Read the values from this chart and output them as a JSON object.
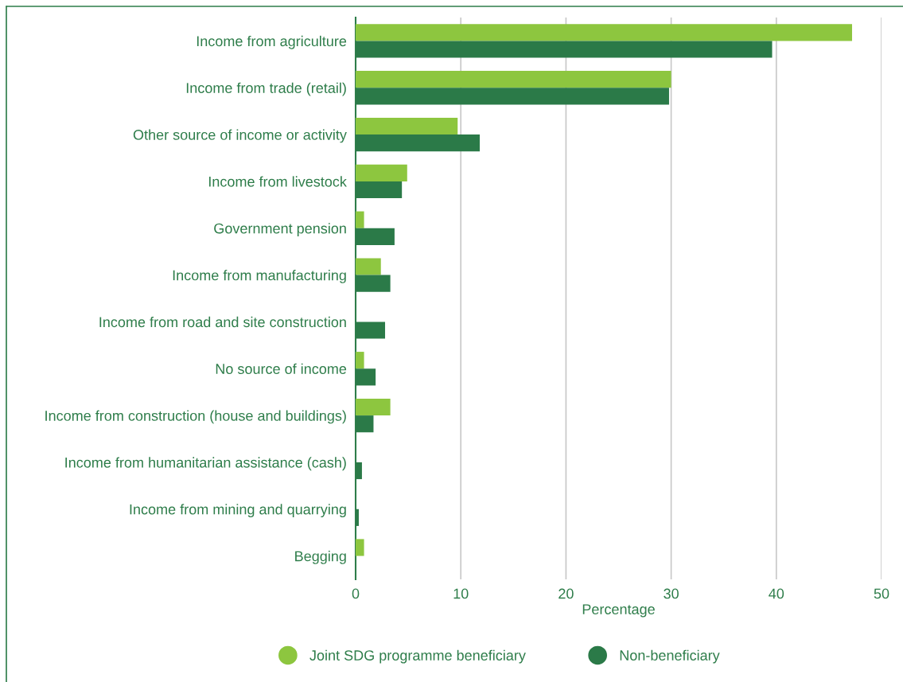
{
  "chart_data": {
    "type": "bar",
    "orientation": "horizontal",
    "xlabel": "Percentage",
    "categories": [
      "Income from agriculture",
      "Income from trade (retail)",
      "Other source of income or activity",
      "Income from livestock",
      "Government pension",
      "Income from manufacturing",
      "Income from road and site construction",
      "No source of income",
      "Income from construction (house and buildings)",
      "Income from humanitarian assistance (cash)",
      "Income from mining and quarrying",
      "Begging"
    ],
    "series": [
      {
        "name": "Joint SDG programme beneficiary",
        "color": "#8dc63f",
        "values": [
          47.2,
          30.0,
          9.7,
          4.9,
          0.8,
          2.4,
          null,
          0.8,
          3.3,
          null,
          null,
          0.8
        ]
      },
      {
        "name": "Non-beneficiary",
        "color": "#2b7a48",
        "values": [
          39.6,
          29.8,
          11.8,
          4.4,
          3.7,
          3.3,
          2.8,
          1.9,
          1.7,
          0.6,
          0.3,
          null
        ]
      }
    ],
    "xlim": [
      0,
      50
    ],
    "xticks": [
      0,
      10,
      20,
      30,
      40,
      50
    ],
    "grid": "x",
    "legend": "bottom"
  }
}
